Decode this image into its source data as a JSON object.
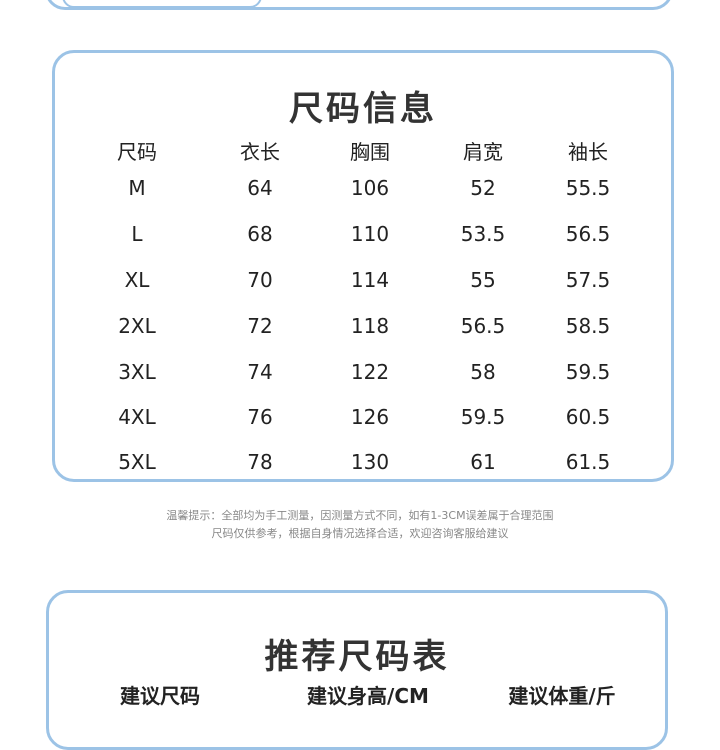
{
  "size_info": {
    "title": "尺码信息",
    "columns": [
      "尺码",
      "衣长",
      "胸围",
      "肩宽",
      "袖长"
    ],
    "rows": [
      [
        "M",
        "64",
        "106",
        "52",
        "55.5"
      ],
      [
        "L",
        "68",
        "110",
        "53.5",
        "56.5"
      ],
      [
        "XL",
        "70",
        "114",
        "55",
        "57.5"
      ],
      [
        "2XL",
        "72",
        "118",
        "56.5",
        "58.5"
      ],
      [
        "3XL",
        "74",
        "122",
        "58",
        "59.5"
      ],
      [
        "4XL",
        "76",
        "126",
        "59.5",
        "60.5"
      ],
      [
        "5XL",
        "78",
        "130",
        "61",
        "61.5"
      ]
    ]
  },
  "note": {
    "line1": "温馨提示：全部均为手工测量，因测量方式不同，如有1-3CM误差属于合理范围",
    "line2": "尺码仅供参考，根据自身情况选择合适，欢迎咨询客服给建议"
  },
  "recommend": {
    "title": "推荐尺码表",
    "columns": [
      "建议尺码",
      "建议身高/CM",
      "建议体重/斤"
    ]
  },
  "colors": {
    "card_border": "#9cc3e6"
  }
}
